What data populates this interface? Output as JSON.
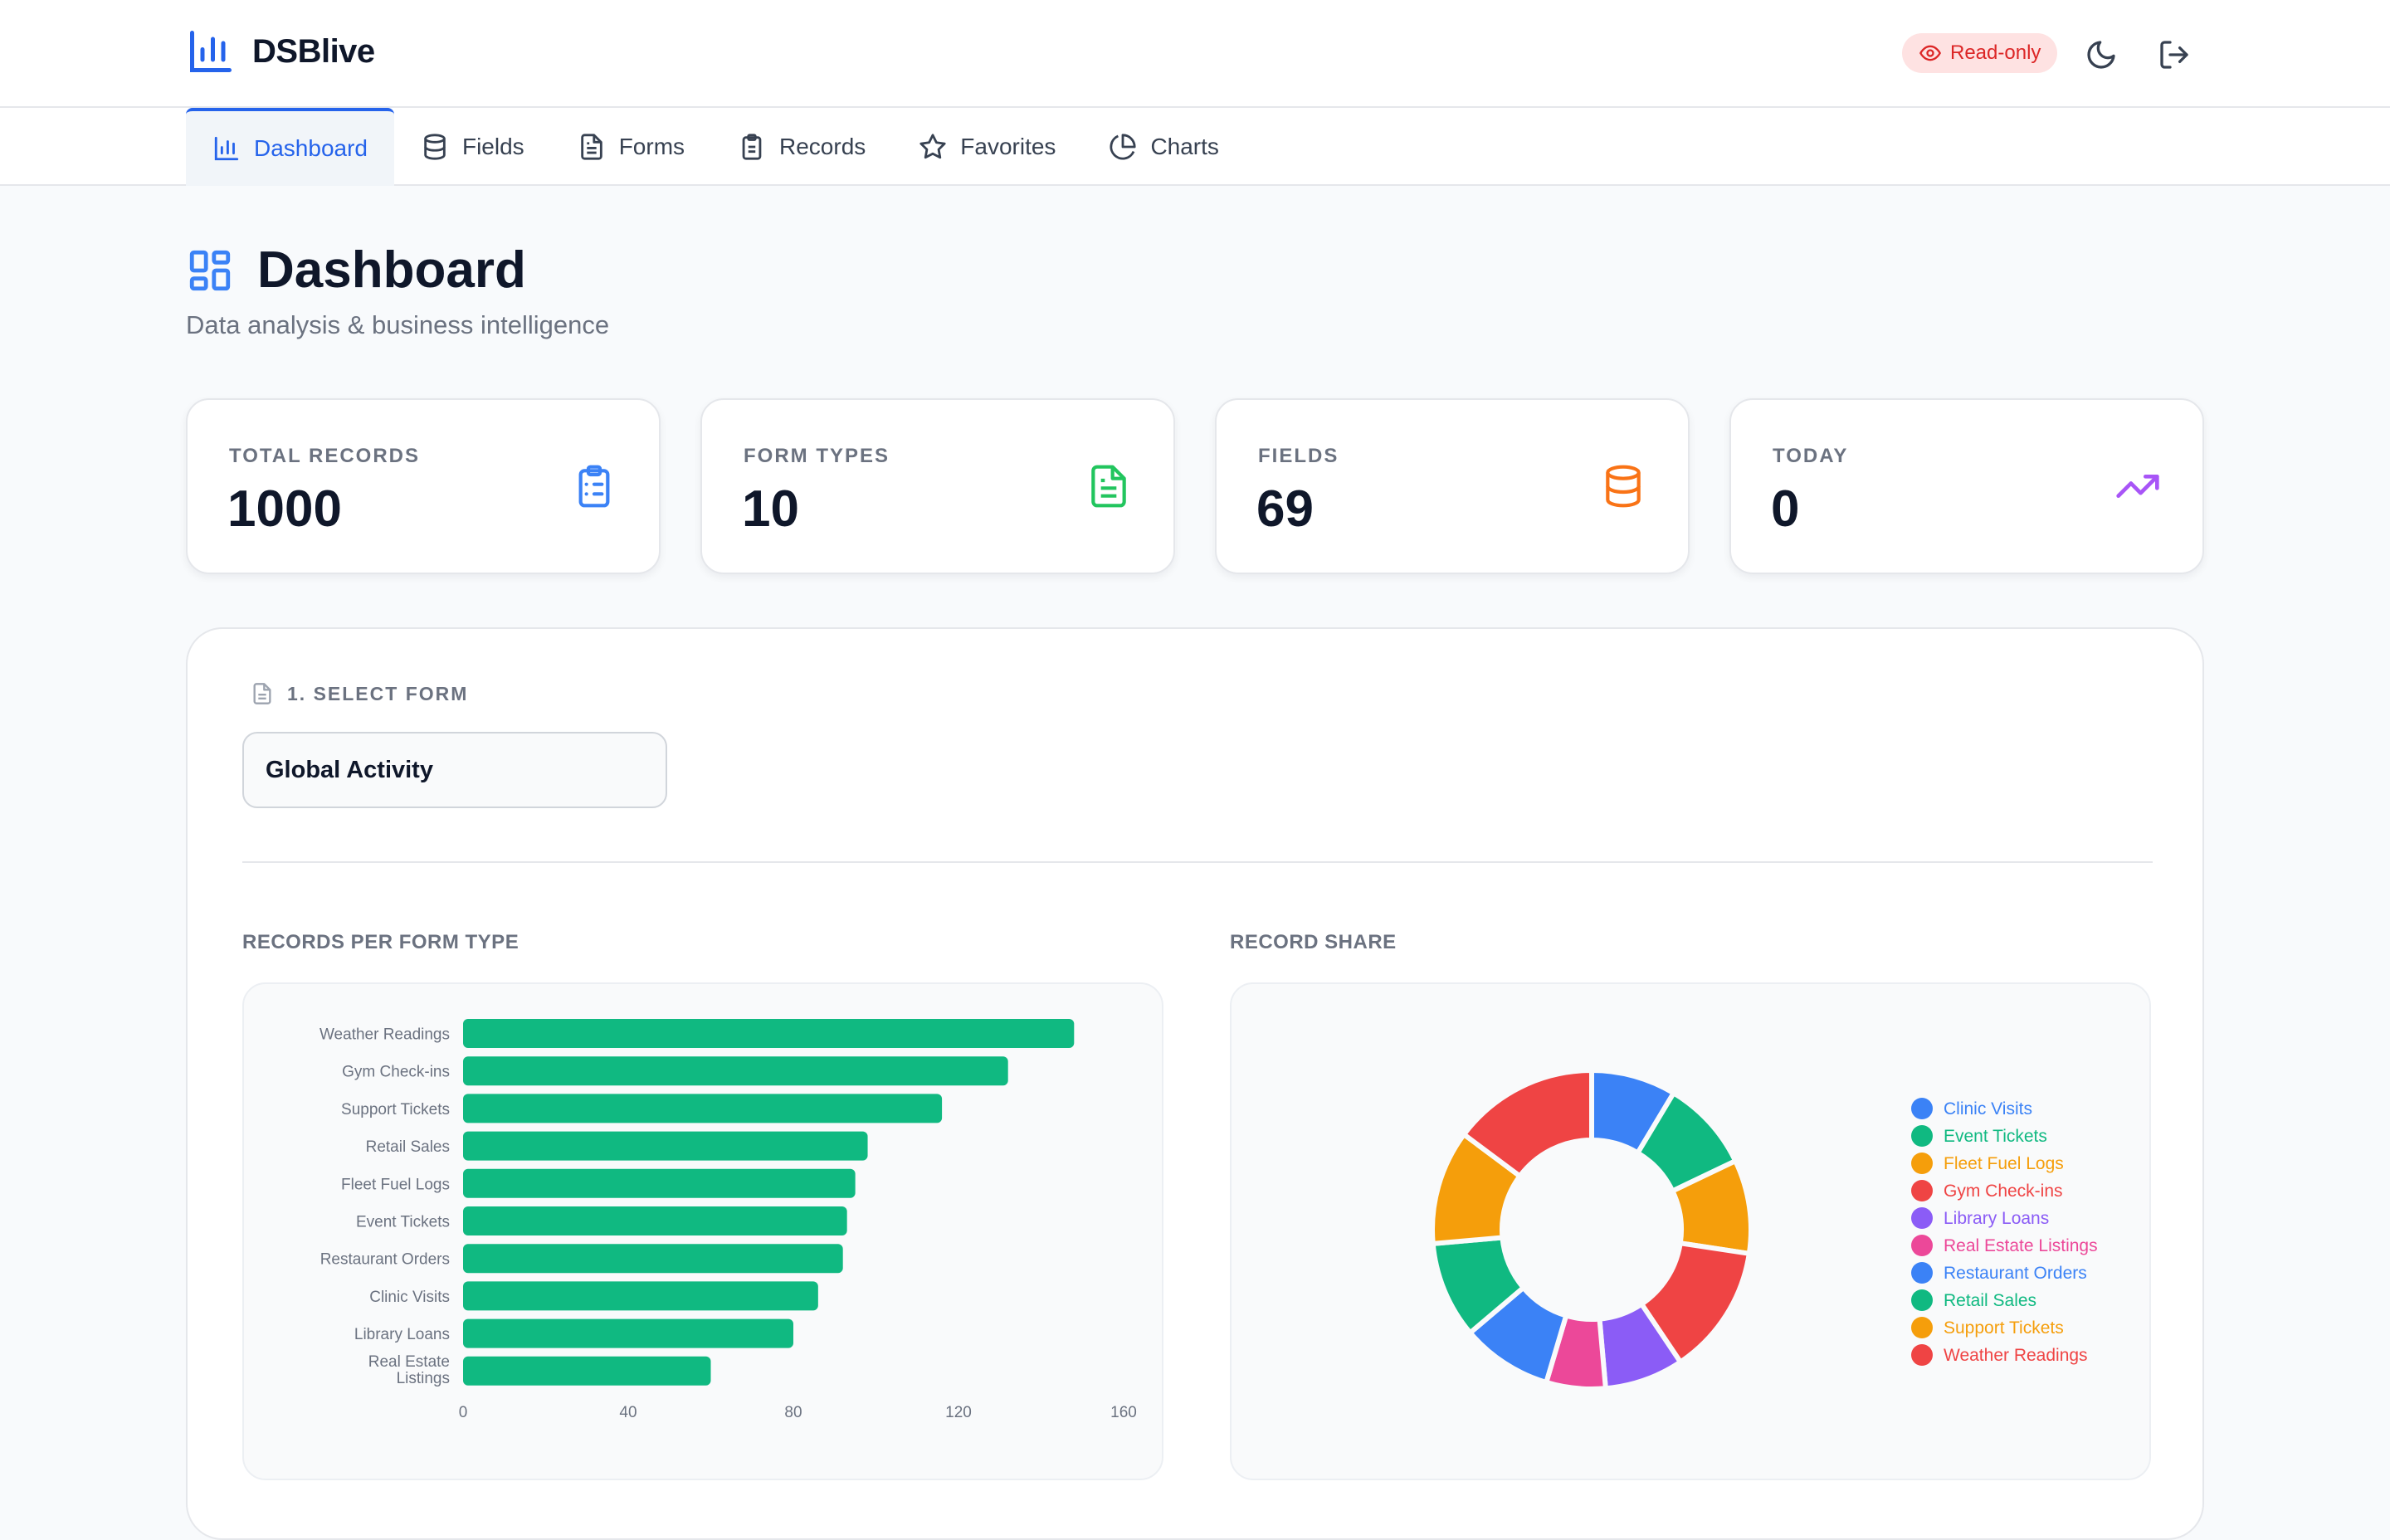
{
  "app": {
    "name": "DSBlive"
  },
  "header": {
    "readonly_badge": "Read-only",
    "icons": [
      "bar-chart-icon",
      "eye-icon",
      "moon-icon",
      "logout-icon"
    ]
  },
  "nav": {
    "tabs": [
      {
        "label": "Dashboard",
        "icon": "bar-chart-icon",
        "active": true
      },
      {
        "label": "Fields",
        "icon": "database-icon"
      },
      {
        "label": "Forms",
        "icon": "file-text-icon"
      },
      {
        "label": "Records",
        "icon": "clipboard-icon"
      },
      {
        "label": "Favorites",
        "icon": "star-icon"
      },
      {
        "label": "Charts",
        "icon": "pie-chart-icon"
      }
    ]
  },
  "page": {
    "title": "Dashboard",
    "subtitle": "Data analysis & business intelligence"
  },
  "stats": [
    {
      "label": "TOTAL RECORDS",
      "value": "1000",
      "icon": "clipboard-list-icon",
      "color": "#3b82f6"
    },
    {
      "label": "FORM TYPES",
      "value": "10",
      "icon": "file-text-icon",
      "color": "#22c55e"
    },
    {
      "label": "FIELDS",
      "value": "69",
      "icon": "database-icon",
      "color": "#f97316"
    },
    {
      "label": "TODAY",
      "value": "0",
      "icon": "trending-up-icon",
      "color": "#a855f7"
    }
  ],
  "selector": {
    "label": "1. SELECT FORM",
    "value": "Global Activity"
  },
  "charts": {
    "bar_title": "RECORDS PER FORM TYPE",
    "donut_title": "RECORD SHARE"
  },
  "colors": {
    "accent": "#2563eb",
    "bar": "#10b981"
  },
  "chart_data": [
    {
      "type": "bar",
      "orientation": "horizontal",
      "title": "RECORDS PER FORM TYPE",
      "categories": [
        "Weather Readings",
        "Gym Check-ins",
        "Support Tickets",
        "Retail Sales",
        "Fleet Fuel Logs",
        "Event Tickets",
        "Restaurant Orders",
        "Clinic Visits",
        "Library Loans",
        "Real Estate Listings"
      ],
      "values": [
        148,
        132,
        116,
        98,
        95,
        93,
        92,
        86,
        80,
        60
      ],
      "xlim": [
        0,
        160
      ],
      "xticks": [
        0,
        40,
        80,
        120,
        160
      ],
      "color": "#10b981"
    },
    {
      "type": "pie",
      "subtype": "donut",
      "title": "RECORD SHARE",
      "legend_position": "right",
      "labels": [
        "Clinic Visits",
        "Event Tickets",
        "Fleet Fuel Logs",
        "Gym Check-ins",
        "Library Loans",
        "Real Estate Listings",
        "Restaurant Orders",
        "Retail Sales",
        "Support Tickets",
        "Weather Readings"
      ],
      "values": [
        86,
        93,
        95,
        132,
        80,
        60,
        92,
        98,
        116,
        148
      ],
      "colors": [
        "#3b82f6",
        "#10b981",
        "#f59e0b",
        "#ef4444",
        "#8b5cf6",
        "#ec4899",
        "#3b82f6",
        "#10b981",
        "#f59e0b",
        "#ef4444"
      ]
    }
  ]
}
